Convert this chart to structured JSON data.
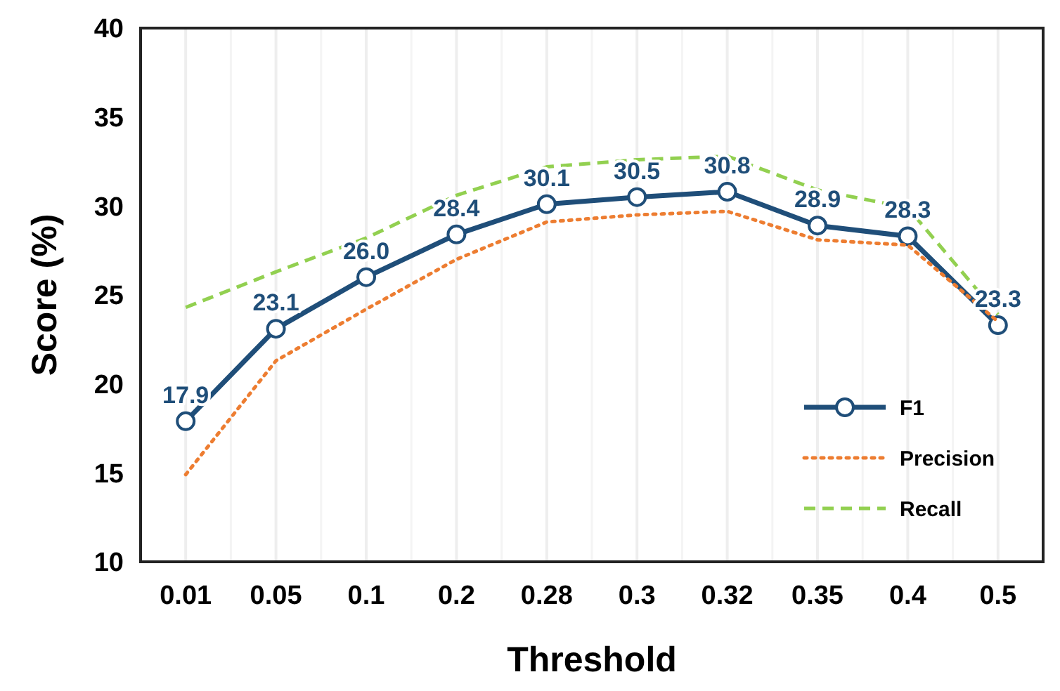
{
  "chart_data": {
    "type": "line",
    "xlabel": "Threshold",
    "ylabel": "Score (%)",
    "categories": [
      "0.01",
      "0.05",
      "0.1",
      "0.2",
      "0.28",
      "0.3",
      "0.32",
      "0.35",
      "0.4",
      "0.5"
    ],
    "ylim": [
      10,
      40
    ],
    "yticks": [
      10,
      15,
      20,
      25,
      30,
      35,
      40
    ],
    "grid": "x",
    "legend": "bottom right",
    "series": [
      {
        "name": "F1",
        "color": "#1f4e79",
        "marker": "circle",
        "line_style": "solid",
        "value_labels": [
          "17.9",
          "23.1",
          "26.0",
          "28.4",
          "30.1",
          "30.5",
          "30.8",
          "28.9",
          "28.3",
          "23.3"
        ],
        "values": [
          17.9,
          23.1,
          26.0,
          28.4,
          30.1,
          30.5,
          30.8,
          28.9,
          28.3,
          23.3
        ]
      },
      {
        "name": "Precision",
        "color": "#ed7d31",
        "marker": "none",
        "line_style": "dotted",
        "values": [
          14.9,
          21.3,
          24.2,
          27.0,
          29.1,
          29.5,
          29.7,
          28.1,
          27.8,
          23.5
        ]
      },
      {
        "name": "Recall",
        "color": "#92d050",
        "marker": "none",
        "line_style": "dashed",
        "values": [
          24.3,
          26.3,
          28.2,
          30.6,
          32.2,
          32.6,
          32.8,
          30.9,
          29.9,
          23.9
        ]
      }
    ]
  }
}
